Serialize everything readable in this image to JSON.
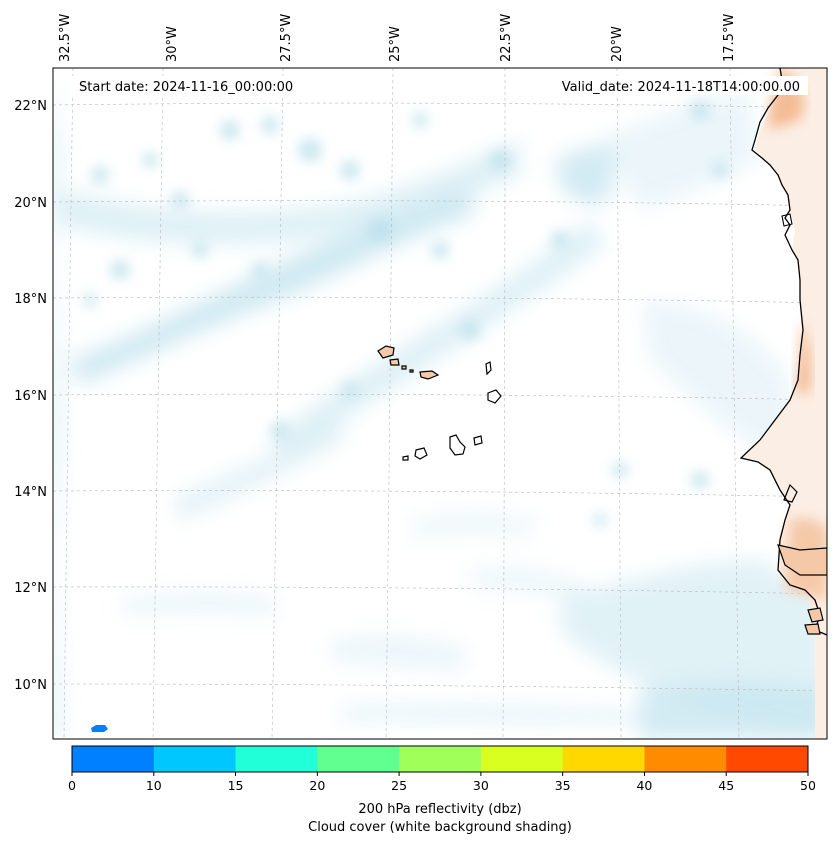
{
  "map": {
    "start_date_text": "Start date: 2024-11-16_00:00:00",
    "valid_date_text": "Valid_date: 2024-11-18T14:00:00.00",
    "lon_labels": [
      {
        "lon": -32.5,
        "text": "32.5°W"
      },
      {
        "lon": -30.0,
        "text": "30°W"
      },
      {
        "lon": -27.5,
        "text": "27.5°W"
      },
      {
        "lon": -25.0,
        "text": "25°W"
      },
      {
        "lon": -22.5,
        "text": "22.5°W"
      },
      {
        "lon": -20.0,
        "text": "20°W"
      },
      {
        "lon": -17.5,
        "text": "17.5°W"
      }
    ],
    "lat_labels": [
      {
        "lat": 22,
        "text": "22°N"
      },
      {
        "lat": 20,
        "text": "20°N"
      },
      {
        "lat": 18,
        "text": "18°N"
      },
      {
        "lat": 16,
        "text": "16°N"
      },
      {
        "lat": 14,
        "text": "14°N"
      },
      {
        "lat": 12,
        "text": "12°N"
      },
      {
        "lat": 10,
        "text": "10°N"
      }
    ],
    "gridlines": true,
    "colors": {
      "cloud": "#a9d8e8",
      "land": "#f5c9a8",
      "land_warm": "#f2a774",
      "coastline": "#000000",
      "gridline": "#b8b8b8"
    }
  },
  "colorbar": {
    "label_line1": "200 hPa reflectivity (dbz)",
    "label_line2": "Cloud cover (white background shading)",
    "ticks": [
      "0",
      "10",
      "15",
      "20",
      "25",
      "30",
      "35",
      "40",
      "45",
      "50"
    ],
    "bins": [
      {
        "from": 0,
        "to": 10,
        "color": "#0080ff"
      },
      {
        "from": 10,
        "to": 15,
        "color": "#00c8ff"
      },
      {
        "from": 15,
        "to": 20,
        "color": "#20ffd8"
      },
      {
        "from": 20,
        "to": 25,
        "color": "#60ff90"
      },
      {
        "from": 25,
        "to": 30,
        "color": "#a0ff58"
      },
      {
        "from": 30,
        "to": 35,
        "color": "#d8ff20"
      },
      {
        "from": 35,
        "to": 40,
        "color": "#ffd800"
      },
      {
        "from": 40,
        "to": 45,
        "color": "#ff8c00"
      },
      {
        "from": 45,
        "to": 50,
        "color": "#ff4800"
      }
    ]
  }
}
